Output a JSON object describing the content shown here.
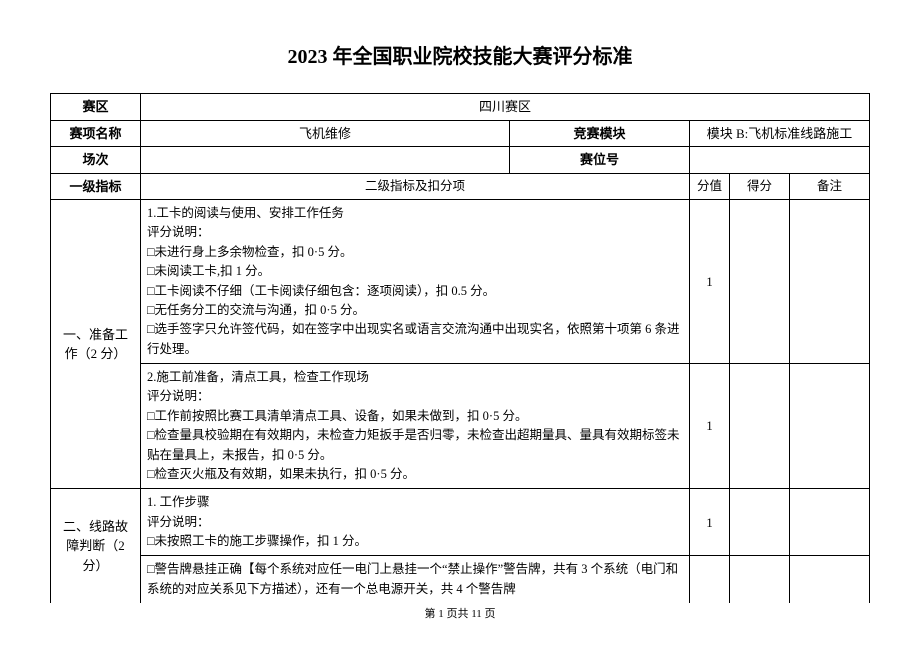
{
  "title": "2023 年全国职业院校技能大赛评分标准",
  "header": {
    "zone_label": "赛区",
    "zone_value": "四川赛区",
    "event_label": "赛项名称",
    "event_value": "飞机维修",
    "module_label": "竞赛模块",
    "module_value": "模块 B:飞机标准线路施工",
    "session_label": "场次",
    "session_value": "",
    "seat_label": "赛位号",
    "seat_value": ""
  },
  "cols": {
    "level1": "一级指标",
    "level2": "二级指标及扣分项",
    "score_max": "分值",
    "score_got": "得分",
    "note": "备注"
  },
  "rows": {
    "r1": {
      "group": "一、准备工作（2 分）",
      "item1_title": "1.工卡的阅读与使用、安排工作任务",
      "item1_body": "评分说明：\n□未进行身上多余物检查，扣 0·5 分。\n□未阅读工卡,扣 1 分。\n□工卡阅读不仔细（工卡阅读仔细包含：逐项阅读），扣 0.5 分。\n□无任务分工的交流与沟通，扣 0·5 分。\n□选手签字只允许签代码，如在签字中出现实名或语言交流沟通中出现实名，依照第十项第 6 条进行处理。",
      "item1_score": "1",
      "item2_title": "2.施工前准备，清点工具，检查工作现场",
      "item2_body": "评分说明：\n□工作前按照比赛工具清单清点工具、设备，如果未做到，扣 0·5 分。\n□检查量具校验期在有效期内，未检查力矩扳手是否归零，未检查出超期量具、量具有效期标签未贴在量具上，未报告，扣 0·5 分。\n□检查灭火瓶及有效期，如果未执行，扣 0·5 分。",
      "item2_score": "1"
    },
    "r2": {
      "group": "二、线路故障判断（2 分）",
      "item1_title": "1. 工作步骤",
      "item1_body": "评分说明：\n□未按照工卡的施工步骤操作，扣 1 分。",
      "item1_score": "1",
      "item1_extra": "□警告牌悬挂正确【每个系统对应任一电门上悬挂一个“禁止操作”警告牌，共有 3 个系统（电门和系统的对应关系见下方描述），还有一个总电源开关，共 4 个警告牌"
    }
  },
  "footer": "第 1 页共 11 页",
  "style": {
    "background_color": "#ffffff",
    "border_color": "#000000",
    "text_color": "#000000",
    "title_fontsize": 20,
    "body_fontsize": 13
  }
}
